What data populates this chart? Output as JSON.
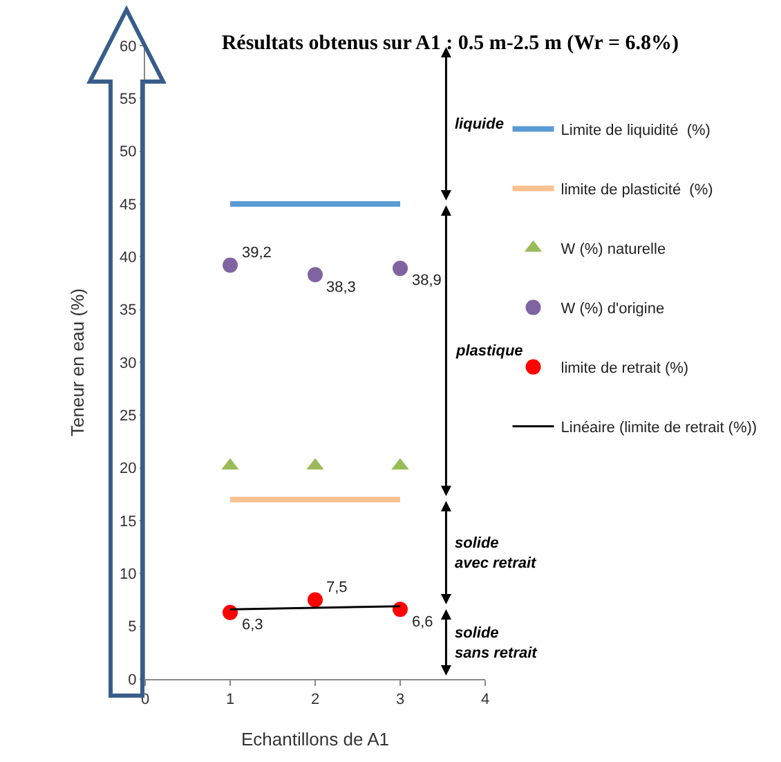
{
  "chart_data": {
    "type": "scatter",
    "title": "Résultats obtenus sur A1 : 0.5 m-2.5 m (Wr = 6.8%)",
    "xlabel": "Echantillons de A1",
    "ylabel": "Teneur en eau (%)",
    "x": [
      1,
      2,
      3
    ],
    "xlim": [
      0,
      4
    ],
    "xticks": [
      0,
      1,
      2,
      3,
      4
    ],
    "ylim": [
      0,
      60
    ],
    "yticks": [
      0,
      5,
      10,
      15,
      20,
      25,
      30,
      35,
      40,
      45,
      50,
      55,
      60
    ],
    "legend": "right",
    "series": [
      {
        "name": "Limite de liquidité  (%)",
        "type": "line",
        "color": "#5b9bd5",
        "values": [
          45,
          45,
          45
        ],
        "marker": "none",
        "line_style": "solid"
      },
      {
        "name": "limite de plasticité  (%)",
        "type": "line",
        "color": "#fac090",
        "values": [
          17,
          17,
          17
        ],
        "marker": "none",
        "line_style": "solid"
      },
      {
        "name": "W (%) naturelle",
        "type": "scatter",
        "color": "#9bbb59",
        "values": [
          20.2,
          20.2,
          20.2
        ],
        "marker": "triangle"
      },
      {
        "name": "W (%) d'origine",
        "type": "scatter",
        "color": "#8064a2",
        "values": [
          39.2,
          38.3,
          38.9
        ],
        "marker": "circle",
        "value_labels": [
          "39,2",
          "38,3",
          "38,9"
        ]
      },
      {
        "name": "limite de retrait (%)",
        "type": "scatter",
        "color": "#ff0000",
        "values": [
          6.3,
          7.5,
          6.6
        ],
        "marker": "circle",
        "value_labels": [
          "6,3",
          "7,5",
          "6,6"
        ]
      },
      {
        "name": "Linéaire (limite de retrait (%))",
        "type": "line",
        "color": "#000000",
        "x": [
          1,
          3
        ],
        "values": [
          6.6,
          6.9
        ],
        "marker": "none",
        "line_style": "solid"
      }
    ],
    "annotations": [
      "liquide",
      "plastique",
      "solide avec retrait",
      "solide sans retrait"
    ]
  }
}
